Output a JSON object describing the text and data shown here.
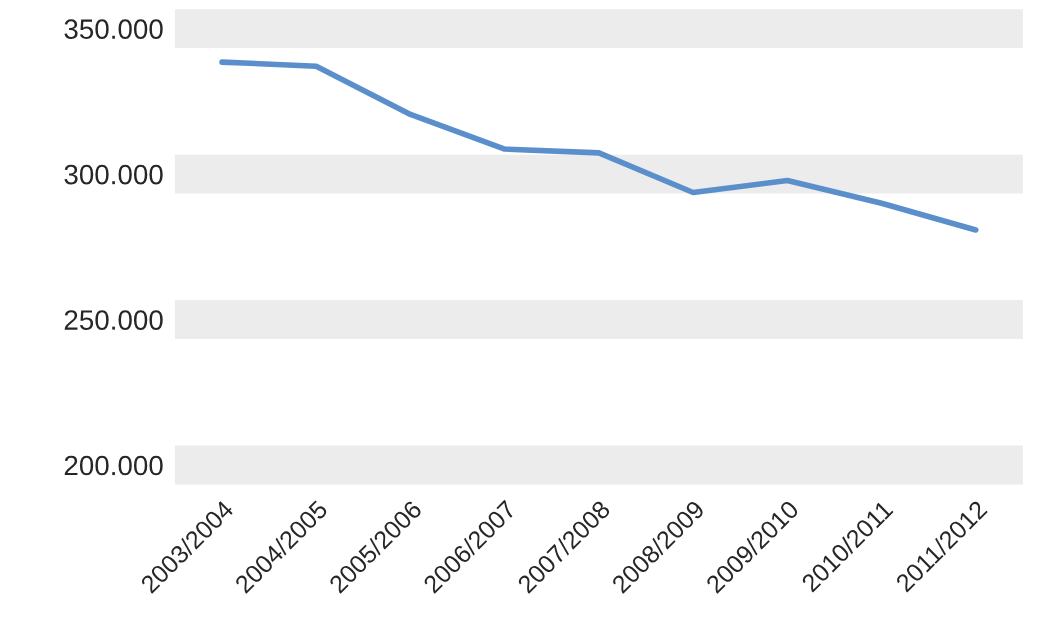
{
  "chart_data": {
    "type": "line",
    "categories": [
      "2003/2004",
      "2004/2005",
      "2005/2006",
      "2006/2007",
      "2007/2008",
      "2008/2009",
      "2009/2010",
      "2010/2011",
      "2011/2012"
    ],
    "series": [
      {
        "color": "#5b8fcc",
        "values": [
          338500,
          337100,
          320500,
          308600,
          307300,
          293700,
          297800,
          290000,
          280800
        ]
      }
    ],
    "ylim": [
      200000,
      350000
    ],
    "yticks": [
      {
        "value": 200000,
        "label": "200.000"
      },
      {
        "value": 250000,
        "label": "250.000"
      },
      {
        "value": 300000,
        "label": "300.000"
      },
      {
        "value": 350000,
        "label": "350.000"
      }
    ],
    "grid": "y",
    "marker": "none",
    "line_style": "solid"
  }
}
